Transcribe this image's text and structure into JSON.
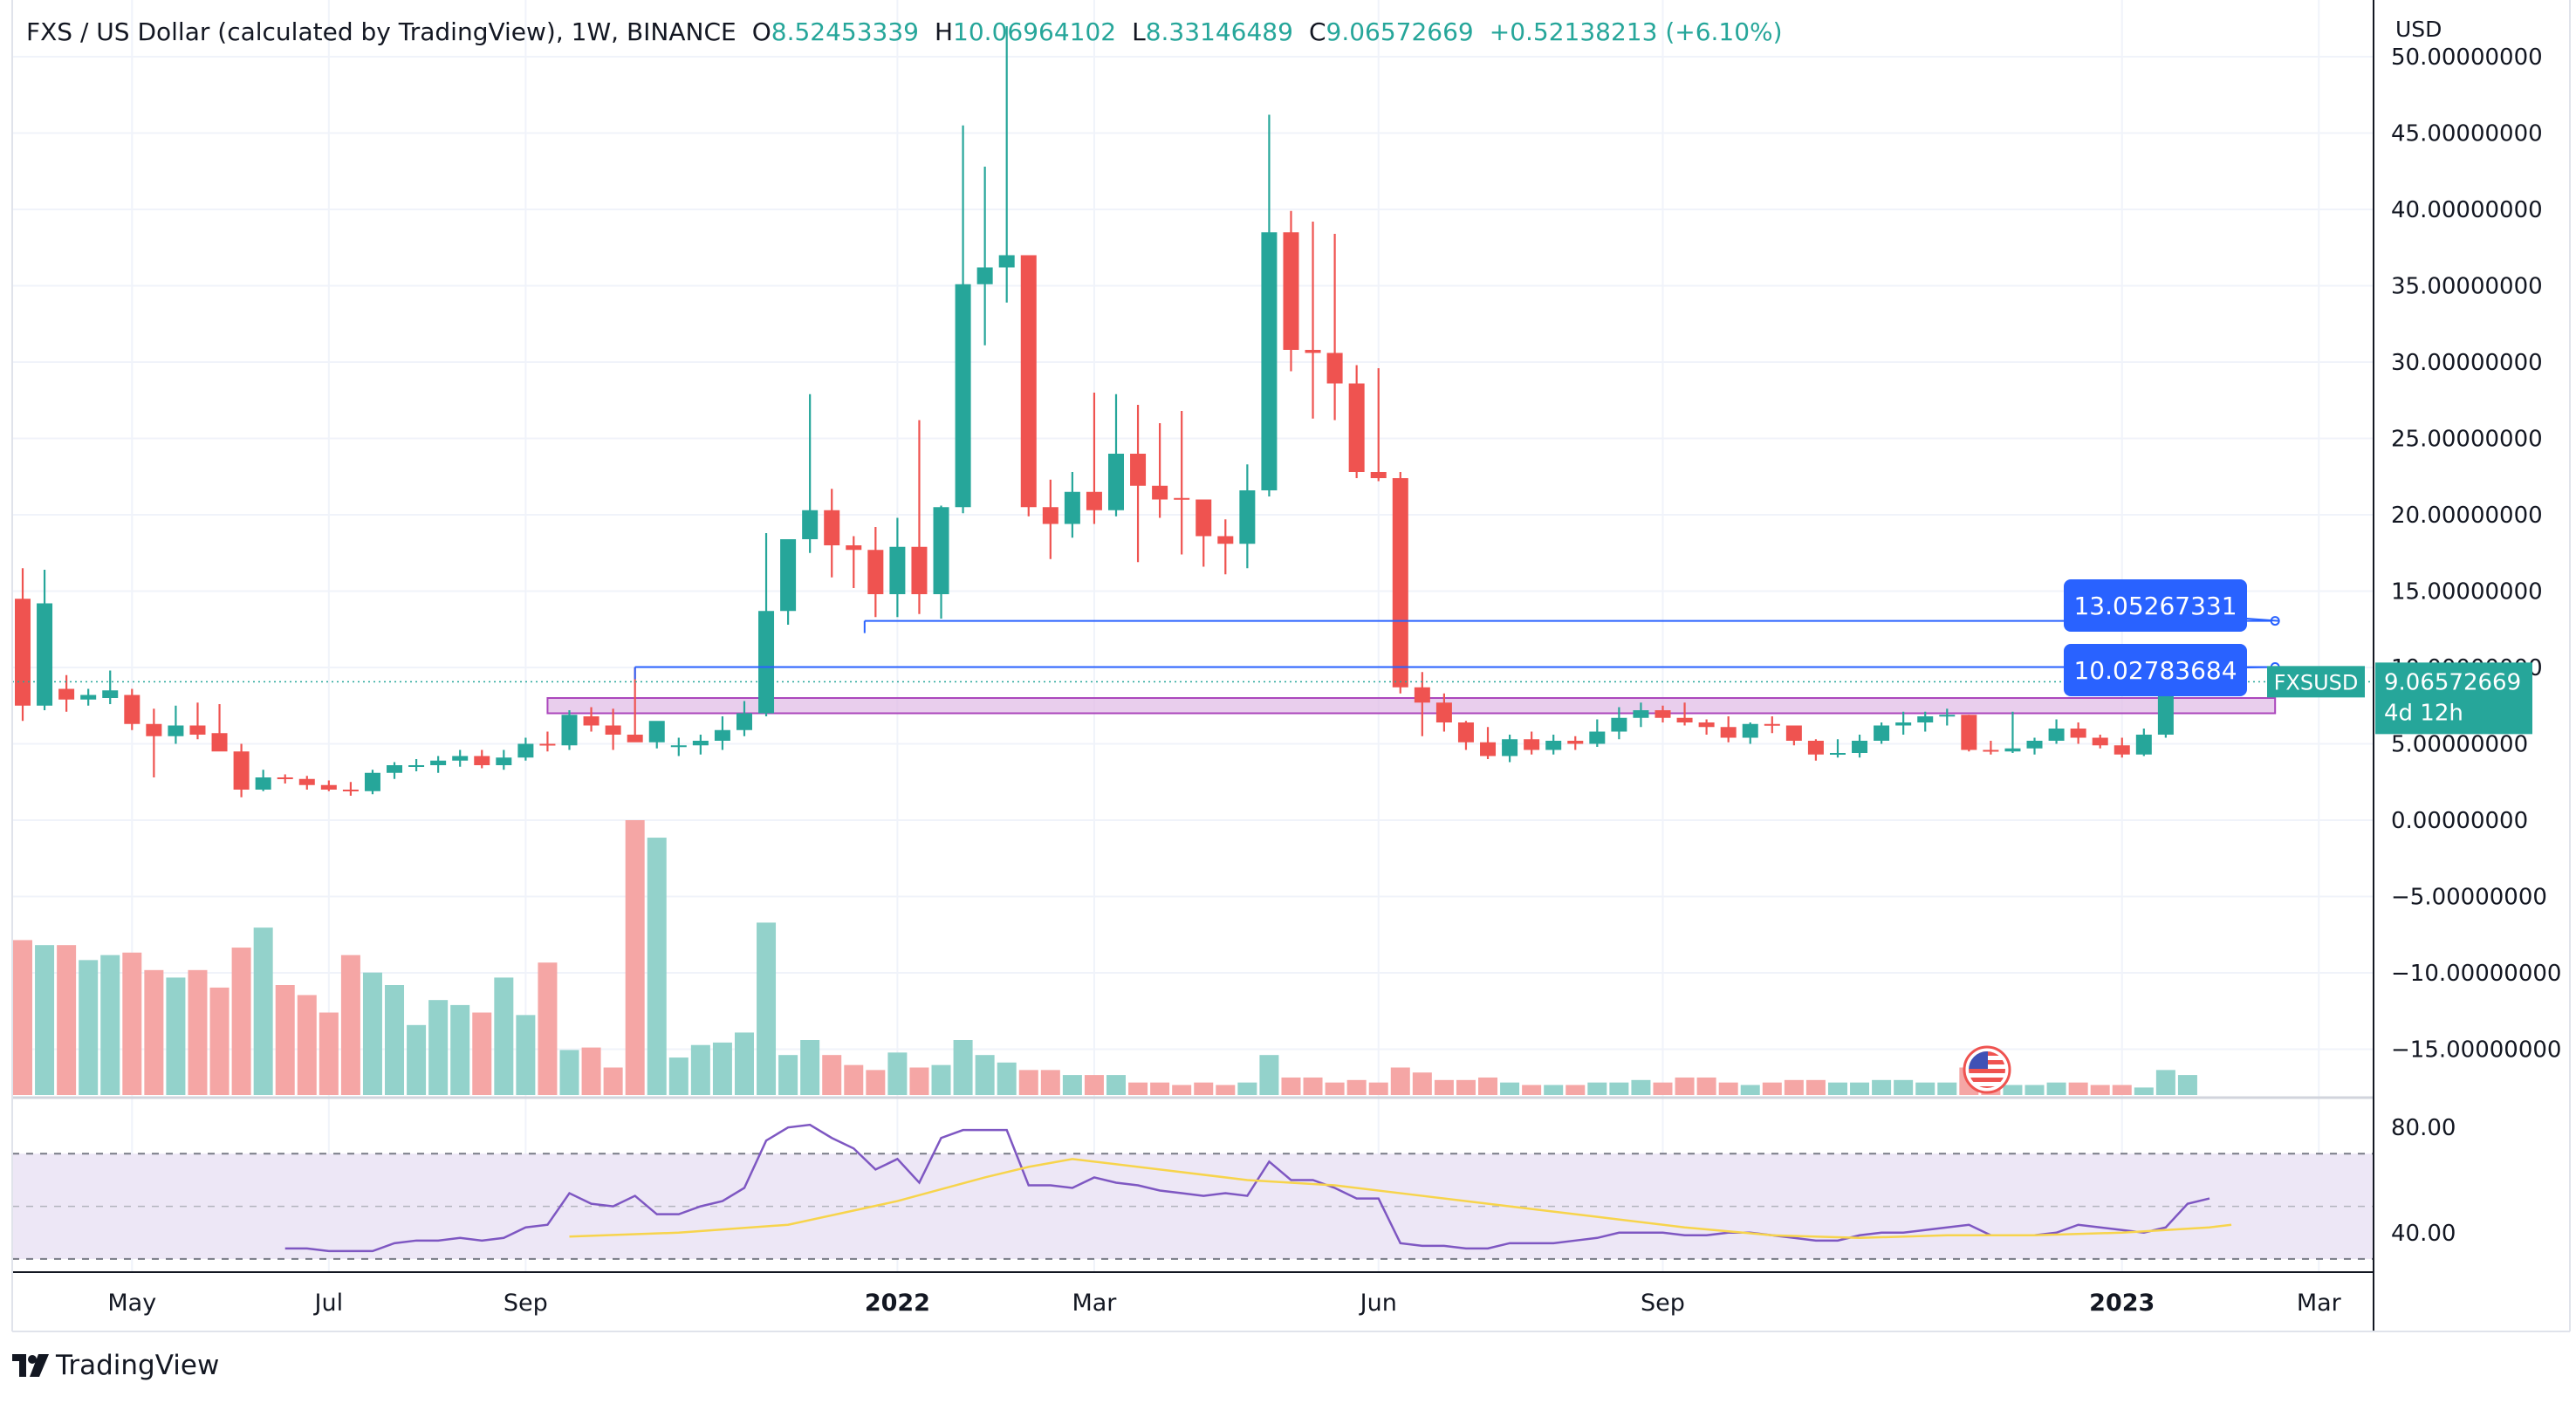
{
  "legend": {
    "symbol": "FXS / US Dollar (calculated by TradingView), 1W, BINANCE",
    "o_label": "O",
    "o_value": "8.52453339",
    "h_label": "H",
    "h_value": "10.06964102",
    "l_label": "L",
    "l_value": "8.33146489",
    "c_label": "C",
    "c_value": "9.06572669",
    "change": "+0.52138213 (+6.10%)"
  },
  "brand": {
    "name": "TradingView"
  },
  "colors": {
    "up": "#26a69a",
    "down": "#ef5350",
    "up_volume": "#93d2cb",
    "down_volume": "#f5a6a5",
    "rsi_line": "#7e57c2",
    "rsi_ma": "#f7d44c",
    "rsi_band": "#ede7f6",
    "drawing": "#2962ff",
    "zone_fill": "#e1bee7",
    "zone_border": "#ab47bc",
    "grid": "#f0f3fa"
  },
  "chart_data": {
    "type": "candlestick",
    "price_axis": {
      "title": "USD",
      "range": [
        -18,
        52
      ],
      "ticks": [
        50,
        45,
        40,
        35,
        30,
        25,
        20,
        15,
        10,
        5,
        0,
        -5,
        -10,
        -15
      ],
      "tick_labels": [
        "50.00000000",
        "45.00000000",
        "40.00000000",
        "35.00000000",
        "30.00000000",
        "25.00000000",
        "20.00000000",
        "15.00000000",
        "10.00000000",
        "5.00000000",
        "0.00000000",
        "−5.00000000",
        "−10.00000000",
        "−15.00000000"
      ]
    },
    "time_axis": {
      "start_label": "2021-03-29",
      "labels": [
        {
          "text": "May",
          "week": 5,
          "bold": false
        },
        {
          "text": "Jul",
          "week": 14,
          "bold": false
        },
        {
          "text": "Sep",
          "week": 23,
          "bold": false
        },
        {
          "text": "2022",
          "week": 40,
          "bold": true
        },
        {
          "text": "Mar",
          "week": 49,
          "bold": false
        },
        {
          "text": "Jun",
          "week": 62,
          "bold": false
        },
        {
          "text": "Sep",
          "week": 75,
          "bold": false
        },
        {
          "text": "2023",
          "week": 96,
          "bold": true
        },
        {
          "text": "Mar",
          "week": 105,
          "bold": false
        }
      ]
    },
    "candles": [
      [
        14.5,
        16.5,
        6.5,
        7.5,
        6.2
      ],
      [
        7.5,
        16.4,
        7.2,
        14.2,
        6.0
      ],
      [
        8.6,
        9.5,
        7.1,
        7.9,
        6.0
      ],
      [
        7.9,
        8.6,
        7.5,
        8.2,
        5.4
      ],
      [
        8.0,
        9.8,
        7.6,
        8.5,
        5.6
      ],
      [
        8.2,
        8.6,
        5.9,
        6.3,
        5.7
      ],
      [
        6.3,
        7.3,
        2.8,
        5.5,
        5.0
      ],
      [
        5.5,
        7.5,
        5.0,
        6.2,
        4.7
      ],
      [
        6.2,
        7.7,
        5.3,
        5.6,
        5.0
      ],
      [
        5.7,
        7.6,
        4.6,
        4.5,
        4.3
      ],
      [
        4.5,
        5.0,
        1.5,
        2.0,
        5.9
      ],
      [
        2.0,
        3.3,
        1.9,
        2.8,
        6.7
      ],
      [
        2.8,
        3.0,
        2.4,
        2.7,
        4.4
      ],
      [
        2.7,
        2.9,
        2.0,
        2.3,
        4.0
      ],
      [
        2.3,
        2.6,
        1.9,
        2.0,
        3.3
      ],
      [
        2.0,
        2.5,
        1.6,
        1.9,
        5.6
      ],
      [
        1.9,
        3.3,
        1.7,
        3.1,
        4.9
      ],
      [
        3.1,
        3.8,
        2.7,
        3.6,
        4.4
      ],
      [
        3.6,
        4.0,
        3.2,
        3.6,
        2.8
      ],
      [
        3.6,
        4.2,
        3.1,
        3.9,
        3.8
      ],
      [
        3.9,
        4.6,
        3.5,
        4.2,
        3.6
      ],
      [
        4.2,
        4.6,
        3.4,
        3.6,
        3.3
      ],
      [
        3.6,
        4.6,
        3.3,
        4.1,
        4.7
      ],
      [
        4.1,
        5.4,
        3.9,
        5.0,
        3.2
      ],
      [
        5.0,
        5.8,
        4.5,
        4.9,
        5.3
      ],
      [
        4.9,
        7.2,
        4.6,
        6.9,
        1.8
      ],
      [
        6.8,
        7.4,
        5.8,
        6.2,
        1.9
      ],
      [
        6.2,
        7.3,
        4.6,
        5.6,
        1.1
      ],
      [
        5.6,
        10.0,
        5.2,
        5.1,
        11.0
      ],
      [
        5.1,
        6.2,
        4.7,
        6.5,
        10.3
      ],
      [
        4.8,
        5.4,
        4.2,
        4.9,
        1.5
      ],
      [
        4.9,
        5.6,
        4.3,
        5.2,
        2.0
      ],
      [
        5.2,
        6.8,
        4.6,
        5.9,
        2.1
      ],
      [
        5.9,
        7.8,
        5.5,
        7.0,
        2.5
      ],
      [
        7.0,
        18.8,
        6.8,
        13.7,
        6.9
      ],
      [
        13.7,
        18.4,
        12.8,
        18.4,
        1.6
      ],
      [
        18.4,
        27.9,
        17.5,
        20.3,
        2.2
      ],
      [
        20.3,
        21.7,
        15.9,
        18.0,
        1.6
      ],
      [
        18.0,
        18.6,
        15.2,
        17.7,
        1.2
      ],
      [
        17.7,
        19.2,
        13.3,
        14.8,
        1.0
      ],
      [
        14.8,
        19.8,
        13.3,
        17.9,
        1.7
      ],
      [
        17.9,
        26.2,
        13.5,
        14.8,
        1.1
      ],
      [
        14.8,
        20.6,
        13.2,
        20.5,
        1.2
      ],
      [
        20.5,
        45.5,
        20.1,
        35.1,
        2.2
      ],
      [
        35.1,
        42.8,
        31.1,
        36.2,
        1.6
      ],
      [
        36.2,
        52.0,
        33.9,
        37.0,
        1.3
      ],
      [
        37.0,
        37.0,
        19.9,
        20.5,
        1.0
      ],
      [
        20.5,
        22.3,
        17.1,
        19.4,
        1.0
      ],
      [
        19.4,
        22.8,
        18.5,
        21.5,
        0.8
      ],
      [
        21.5,
        28.0,
        19.4,
        20.3,
        0.8
      ],
      [
        20.3,
        27.9,
        19.9,
        24.0,
        0.8
      ],
      [
        24.0,
        27.2,
        16.9,
        21.9,
        0.5
      ],
      [
        21.9,
        26.0,
        19.8,
        21.0,
        0.5
      ],
      [
        21.1,
        26.8,
        17.4,
        21.0,
        0.4
      ],
      [
        21.0,
        21.0,
        16.6,
        18.6,
        0.5
      ],
      [
        18.6,
        19.7,
        16.1,
        18.1,
        0.4
      ],
      [
        18.1,
        23.3,
        16.5,
        21.6,
        0.5
      ],
      [
        21.6,
        46.2,
        21.2,
        38.5,
        1.6
      ],
      [
        38.5,
        39.9,
        29.4,
        30.8,
        0.7
      ],
      [
        30.8,
        39.2,
        26.3,
        30.6,
        0.7
      ],
      [
        30.6,
        38.4,
        26.2,
        28.6,
        0.5
      ],
      [
        28.6,
        29.8,
        22.4,
        22.8,
        0.6
      ],
      [
        22.8,
        29.6,
        22.2,
        22.4,
        0.5
      ],
      [
        22.4,
        22.8,
        8.3,
        8.7,
        1.1
      ],
      [
        8.7,
        9.7,
        5.5,
        7.7,
        0.9
      ],
      [
        7.7,
        8.3,
        5.8,
        6.4,
        0.6
      ],
      [
        6.4,
        6.5,
        4.6,
        5.1,
        0.6
      ],
      [
        5.1,
        6.1,
        4.0,
        4.2,
        0.7
      ],
      [
        4.2,
        5.6,
        3.8,
        5.3,
        0.5
      ],
      [
        5.3,
        5.8,
        4.3,
        4.6,
        0.4
      ],
      [
        4.6,
        5.6,
        4.3,
        5.2,
        0.4
      ],
      [
        5.2,
        5.5,
        4.6,
        5.0,
        0.4
      ],
      [
        5.0,
        6.6,
        4.8,
        5.8,
        0.5
      ],
      [
        5.8,
        7.4,
        5.3,
        6.7,
        0.5
      ],
      [
        6.7,
        7.7,
        6.1,
        7.2,
        0.6
      ],
      [
        7.2,
        7.5,
        6.4,
        6.7,
        0.5
      ],
      [
        6.7,
        7.7,
        6.2,
        6.4,
        0.7
      ],
      [
        6.4,
        6.6,
        5.6,
        6.1,
        0.7
      ],
      [
        6.1,
        6.8,
        5.1,
        5.4,
        0.5
      ],
      [
        5.4,
        6.4,
        5.0,
        6.3,
        0.4
      ],
      [
        6.3,
        6.8,
        5.7,
        6.2,
        0.5
      ],
      [
        6.2,
        6.2,
        4.9,
        5.2,
        0.6
      ],
      [
        5.2,
        5.3,
        3.9,
        4.3,
        0.6
      ],
      [
        4.3,
        5.3,
        4.1,
        4.4,
        0.5
      ],
      [
        4.4,
        5.6,
        4.1,
        5.2,
        0.5
      ],
      [
        5.2,
        6.4,
        5.0,
        6.2,
        0.6
      ],
      [
        6.2,
        7.1,
        5.6,
        6.4,
        0.6
      ],
      [
        6.4,
        7.1,
        5.8,
        6.8,
        0.5
      ],
      [
        6.8,
        7.3,
        6.2,
        6.9,
        0.5
      ],
      [
        6.9,
        6.9,
        4.5,
        4.6,
        1.1
      ],
      [
        4.6,
        5.2,
        4.3,
        4.5,
        0.5
      ],
      [
        4.5,
        7.1,
        4.4,
        4.7,
        0.4
      ],
      [
        4.7,
        5.4,
        4.3,
        5.2,
        0.4
      ],
      [
        5.2,
        6.6,
        5.0,
        6.0,
        0.5
      ],
      [
        6.0,
        6.4,
        5.0,
        5.4,
        0.5
      ],
      [
        5.4,
        5.6,
        4.7,
        4.9,
        0.4
      ],
      [
        4.9,
        5.4,
        4.1,
        4.3,
        0.4
      ],
      [
        4.3,
        6.0,
        4.2,
        5.6,
        0.3
      ],
      [
        5.6,
        9.1,
        5.4,
        8.5,
        1.0
      ],
      [
        8.5,
        10.07,
        8.33,
        9.06572669,
        0.8
      ]
    ],
    "volume_axis": {
      "max": 11.0
    },
    "candle_fields": [
      "open",
      "high",
      "low",
      "close",
      "volume"
    ],
    "rsi": {
      "range": [
        25,
        90
      ],
      "ticks": [
        80,
        40
      ],
      "tick_labels": [
        "80.00",
        "40.00"
      ],
      "upper_band": 70,
      "lower_band": 30,
      "values": [
        null,
        null,
        null,
        null,
        null,
        null,
        null,
        null,
        null,
        null,
        null,
        null,
        34,
        34,
        33,
        33,
        33,
        36,
        37,
        37,
        38,
        37,
        38,
        42,
        43,
        55,
        51,
        50,
        54,
        47,
        47,
        50,
        52,
        57,
        75,
        80,
        81,
        76,
        72,
        64,
        68,
        59,
        76,
        79,
        79,
        79,
        58,
        58,
        57,
        61,
        59,
        58,
        56,
        55,
        54,
        55,
        54,
        67,
        60,
        60,
        57,
        53,
        53,
        36,
        35,
        35,
        34,
        34,
        36,
        36,
        36,
        37,
        38,
        40,
        40,
        40,
        39,
        39,
        40,
        40,
        39,
        38,
        37,
        37,
        39,
        40,
        40,
        41,
        42,
        43,
        39,
        39,
        39,
        40,
        43,
        42,
        41,
        40,
        42,
        51,
        53
      ],
      "ma_values": [
        null,
        null,
        null,
        null,
        null,
        null,
        null,
        null,
        null,
        null,
        null,
        null,
        null,
        null,
        null,
        null,
        null,
        null,
        null,
        null,
        null,
        null,
        null,
        null,
        null,
        null,
        null,
        null,
        null,
        null,
        null,
        null,
        null,
        null,
        null,
        null,
        null,
        null,
        null,
        null,
        null,
        null,
        null,
        null,
        null,
        null,
        null,
        null,
        null,
        null,
        null,
        null,
        null,
        null,
        null,
        null,
        null,
        null,
        null,
        null,
        null,
        null,
        null,
        null,
        null,
        null,
        null,
        null,
        null,
        null,
        null,
        null,
        null,
        null,
        null,
        null,
        null,
        null,
        null,
        null,
        null,
        null,
        null,
        null,
        null,
        null,
        null,
        null,
        null,
        null,
        null,
        null,
        null,
        null,
        null,
        null,
        null,
        null,
        null,
        null,
        null
      ]
    },
    "rsi_ma_points": [
      [
        25,
        38.5
      ],
      [
        30,
        40
      ],
      [
        35,
        43
      ],
      [
        40,
        52
      ],
      [
        44,
        61
      ],
      [
        46,
        65
      ],
      [
        48,
        68
      ],
      [
        52,
        64
      ],
      [
        56,
        60
      ],
      [
        60,
        58
      ],
      [
        64,
        54
      ],
      [
        68,
        50
      ],
      [
        72,
        46
      ],
      [
        76,
        42
      ],
      [
        80,
        39
      ],
      [
        84,
        38
      ],
      [
        88,
        39
      ],
      [
        92,
        39
      ],
      [
        96,
        40
      ],
      [
        100,
        42
      ],
      [
        101,
        43
      ]
    ],
    "zone": {
      "from_week": 24,
      "to_week": 103,
      "top": 8.0,
      "bottom": 7.0
    },
    "horizontal_lines": [
      {
        "from_week": 38.5,
        "to_week": 103,
        "price": 13.05267331,
        "label": "13.05267331"
      },
      {
        "from_week": 28,
        "to_week": 103,
        "price": 10.02783684,
        "label": "10.02783684"
      }
    ],
    "last_price": {
      "value": 9.06572669,
      "symbol": "FXSUSD",
      "label": "9.06572669",
      "countdown": "4d 12h"
    }
  }
}
